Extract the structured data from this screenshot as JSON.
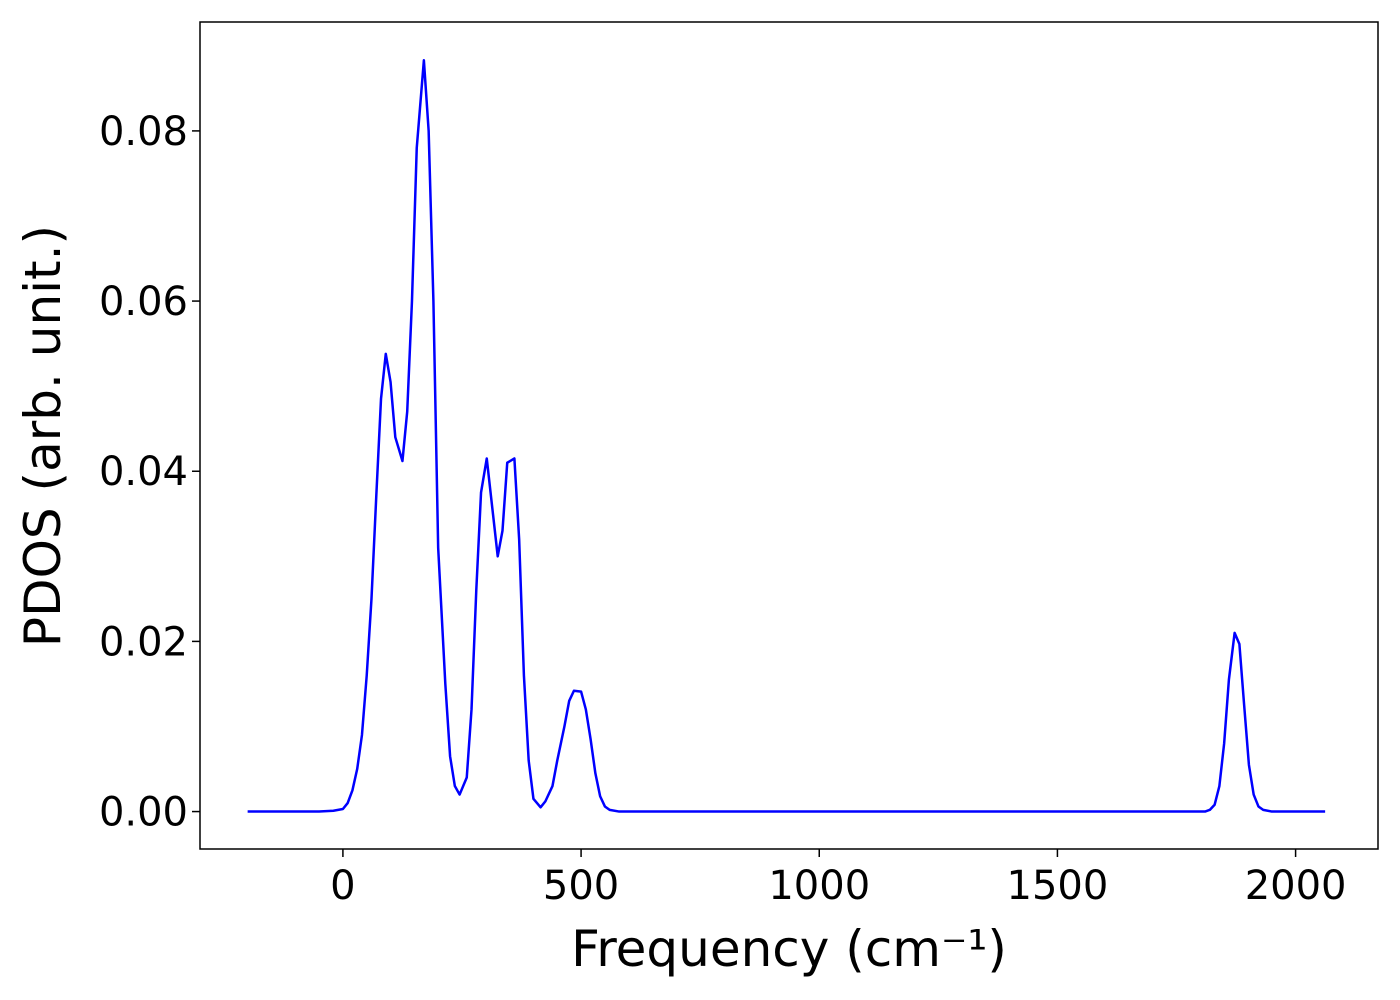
{
  "chart_data": {
    "type": "line",
    "xlabel": "Frequency (cm⁻¹)",
    "ylabel": "PDOS (arb. unit.)",
    "x": [
      -200,
      -50,
      -20,
      0,
      10,
      20,
      30,
      40,
      50,
      60,
      70,
      80,
      90,
      100,
      110,
      125,
      135,
      145,
      155,
      170,
      180,
      190,
      200,
      215,
      225,
      235,
      245,
      260,
      270,
      280,
      290,
      302,
      315,
      325,
      335,
      345,
      360,
      370,
      380,
      390,
      400,
      415,
      425,
      440,
      450,
      465,
      475,
      485,
      500,
      510,
      520,
      530,
      540,
      550,
      560,
      580,
      1810,
      1820,
      1830,
      1840,
      1850,
      1860,
      1872,
      1882,
      1892,
      1902,
      1912,
      1922,
      1932,
      1950,
      2062
    ],
    "series": [
      {
        "name": "PDOS",
        "color": "#0000ff",
        "values": [
          0,
          0,
          0.0001,
          0.0003,
          0.001,
          0.0025,
          0.005,
          0.009,
          0.016,
          0.025,
          0.037,
          0.0485,
          0.0538,
          0.0505,
          0.044,
          0.0412,
          0.047,
          0.06,
          0.078,
          0.0883,
          0.08,
          0.06,
          0.031,
          0.015,
          0.0065,
          0.003,
          0.002,
          0.004,
          0.012,
          0.026,
          0.0375,
          0.0415,
          0.035,
          0.03,
          0.033,
          0.041,
          0.0415,
          0.032,
          0.016,
          0.006,
          0.0015,
          0.0005,
          0.0012,
          0.003,
          0.006,
          0.01,
          0.013,
          0.0142,
          0.0141,
          0.012,
          0.0085,
          0.0045,
          0.0018,
          0.0006,
          0.0002,
          0,
          0,
          0.0002,
          0.0008,
          0.003,
          0.008,
          0.0155,
          0.021,
          0.0197,
          0.0125,
          0.0055,
          0.002,
          0.0006,
          0.0002,
          0,
          0
        ]
      }
    ],
    "xlim": [
      -300,
      2173
    ],
    "ylim": [
      -0.0044,
      0.0928
    ],
    "xticks": [
      0,
      500,
      1000,
      1500,
      2000
    ],
    "yticks": [
      {
        "value": 0,
        "label": "0.00"
      },
      {
        "value": 0.02,
        "label": "0.02"
      },
      {
        "value": 0.04,
        "label": "0.04"
      },
      {
        "value": 0.06,
        "label": "0.06"
      },
      {
        "value": 0.08,
        "label": "0.08"
      }
    ]
  }
}
